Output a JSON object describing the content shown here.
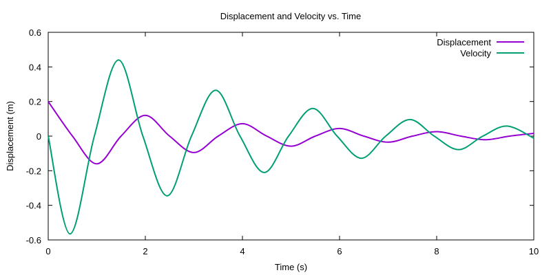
{
  "chart_data": {
    "type": "line",
    "title": "Displacement and Velocity vs. Time",
    "xlabel": "Time (s)",
    "ylabel": "Displacement (m)",
    "xlim": [
      0,
      10
    ],
    "ylim": [
      -0.6,
      0.6
    ],
    "x_ticks": [
      0,
      2,
      4,
      6,
      8,
      10
    ],
    "x_tick_labels": [
      "0",
      "2",
      "4",
      "6",
      "8",
      "10"
    ],
    "y_ticks": [
      -0.6,
      -0.4,
      -0.2,
      0,
      0.2,
      0.4,
      0.6
    ],
    "y_tick_labels": [
      "-0.6",
      "-0.4",
      "-0.2",
      "0",
      "0.2",
      "0.4",
      "0.6"
    ],
    "grid": false,
    "legend_position": "top-right",
    "series": [
      {
        "name": "Displacement",
        "color": "#9400d3",
        "x": [
          0,
          0.5,
          1.0,
          1.5,
          2.0,
          2.5,
          3.0,
          3.5,
          4.0,
          4.5,
          5.0,
          5.5,
          6.0,
          6.5,
          7.0,
          7.5,
          8.0,
          8.5,
          9.0,
          9.5,
          10.0
        ],
        "y": [
          0.2,
          0.0,
          -0.16,
          0.0,
          0.12,
          0.0,
          -0.095,
          0.0,
          0.072,
          0.0,
          -0.058,
          0.0,
          0.044,
          0.0,
          -0.035,
          0.0,
          0.026,
          0.0,
          -0.021,
          0.0,
          0.016
        ]
      },
      {
        "name": "Velocity",
        "color": "#009e73",
        "x": [
          0,
          0.45,
          0.95,
          1.45,
          1.95,
          2.45,
          2.95,
          3.45,
          3.95,
          4.45,
          4.95,
          5.45,
          5.95,
          6.45,
          6.95,
          7.45,
          7.95,
          8.45,
          8.95,
          9.45,
          10.0
        ],
        "y": [
          0.0,
          -0.565,
          0.0,
          0.44,
          0.0,
          -0.345,
          0.0,
          0.265,
          0.0,
          -0.21,
          0.0,
          0.16,
          0.0,
          -0.128,
          0.0,
          0.096,
          0.0,
          -0.078,
          0.0,
          0.058,
          -0.012
        ]
      }
    ]
  }
}
